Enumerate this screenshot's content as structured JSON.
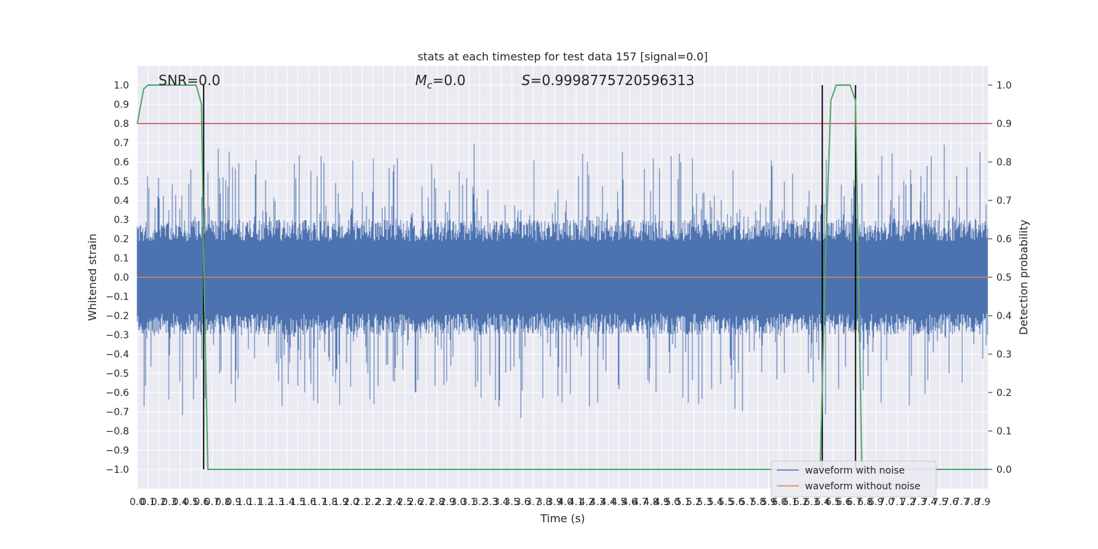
{
  "chart_data": {
    "type": "line",
    "title": "stats at each timestep for test data 157 [signal=0.0]",
    "xlabel": "Time (s)",
    "ylabel": "Whitened strain",
    "y2label": "Detection probability",
    "xlim": [
      0.0,
      7.95
    ],
    "ylim": [
      -1.1,
      1.1
    ],
    "y2lim": [
      -0.05,
      1.05
    ],
    "xticks": [
      0.0,
      0.1,
      0.2,
      0.3,
      0.4,
      0.5,
      0.6,
      0.7,
      0.8,
      0.9,
      1.0,
      1.1,
      1.2,
      1.3,
      1.4,
      1.5,
      1.6,
      1.7,
      1.8,
      1.9,
      2.0,
      2.1,
      2.2,
      2.3,
      2.4,
      2.5,
      2.6,
      2.7,
      2.8,
      2.9,
      3.0,
      3.1,
      3.2,
      3.3,
      3.4,
      3.5,
      3.6,
      3.7,
      3.8,
      3.9,
      4.0,
      4.1,
      4.2,
      4.3,
      4.4,
      4.5,
      4.6,
      4.7,
      4.8,
      4.9,
      5.0,
      5.1,
      5.2,
      5.3,
      5.4,
      5.5,
      5.6,
      5.7,
      5.8,
      5.9,
      6.0,
      6.1,
      6.2,
      6.3,
      6.4,
      6.5,
      6.6,
      6.7,
      6.8,
      6.9,
      7.0,
      7.1,
      7.2,
      7.3,
      7.4,
      7.5,
      7.6,
      7.7,
      7.8,
      7.9
    ],
    "yticks": [
      -1.0,
      -0.9,
      -0.8,
      -0.7,
      -0.6,
      -0.5,
      -0.4,
      -0.3,
      -0.2,
      -0.1,
      0.0,
      0.1,
      0.2,
      0.3,
      0.4,
      0.5,
      0.6,
      0.7,
      0.8,
      0.9,
      1.0
    ],
    "y2ticks": [
      0.0,
      0.1,
      0.2,
      0.3,
      0.4,
      0.5,
      0.6,
      0.7,
      0.8,
      0.9,
      1.0
    ],
    "annotations": {
      "snr": "SNR=0.0",
      "mc_symbol": "M",
      "mc_sub": "c",
      "mc_value": "=0.0",
      "s_symbol": "S",
      "s_value": "=0.9998775720596313"
    },
    "threshold": 0.9,
    "vertical_lines": [
      0.62,
      6.4,
      6.71
    ],
    "noise_envelope": {
      "typical_abs": 0.25,
      "peak_max": 1.0,
      "peak_min": -0.99
    },
    "series": [
      {
        "name": "waveform with noise",
        "color": "#4c72b0",
        "values_range": [
          -0.99,
          1.0
        ]
      },
      {
        "name": "waveform without noise",
        "color": "#dd8452",
        "value": 0.0
      },
      {
        "name": "",
        "color": "#55a868",
        "axis": "right",
        "x": [
          0.0,
          0.06,
          0.1,
          0.2,
          0.3,
          0.4,
          0.5,
          0.55,
          0.6,
          0.62,
          0.66,
          0.7,
          0.8,
          1.0,
          1.5,
          2.0,
          3.0,
          4.0,
          5.0,
          6.0,
          6.3,
          6.38,
          6.43,
          6.48,
          6.53,
          6.6,
          6.66,
          6.71,
          6.77,
          6.85,
          7.0,
          7.5,
          7.95
        ],
        "values": [
          0.9,
          0.99,
          1.0,
          1.0,
          1.0,
          1.0,
          1.0,
          1.0,
          0.95,
          0.55,
          0.0,
          0.0,
          0.0,
          0.0,
          0.0,
          0.0,
          0.0,
          0.0,
          0.0,
          0.0,
          0.0,
          0.0,
          0.55,
          0.96,
          1.0,
          1.0,
          1.0,
          0.96,
          0.0,
          0.0,
          0.0,
          0.0,
          0.0
        ]
      }
    ],
    "colors": {
      "threshold": "#c44e52",
      "vline": "#000000",
      "plot_bg": "#eaeaf2",
      "grid": "#ffffff"
    },
    "legend": "bottom-right"
  }
}
